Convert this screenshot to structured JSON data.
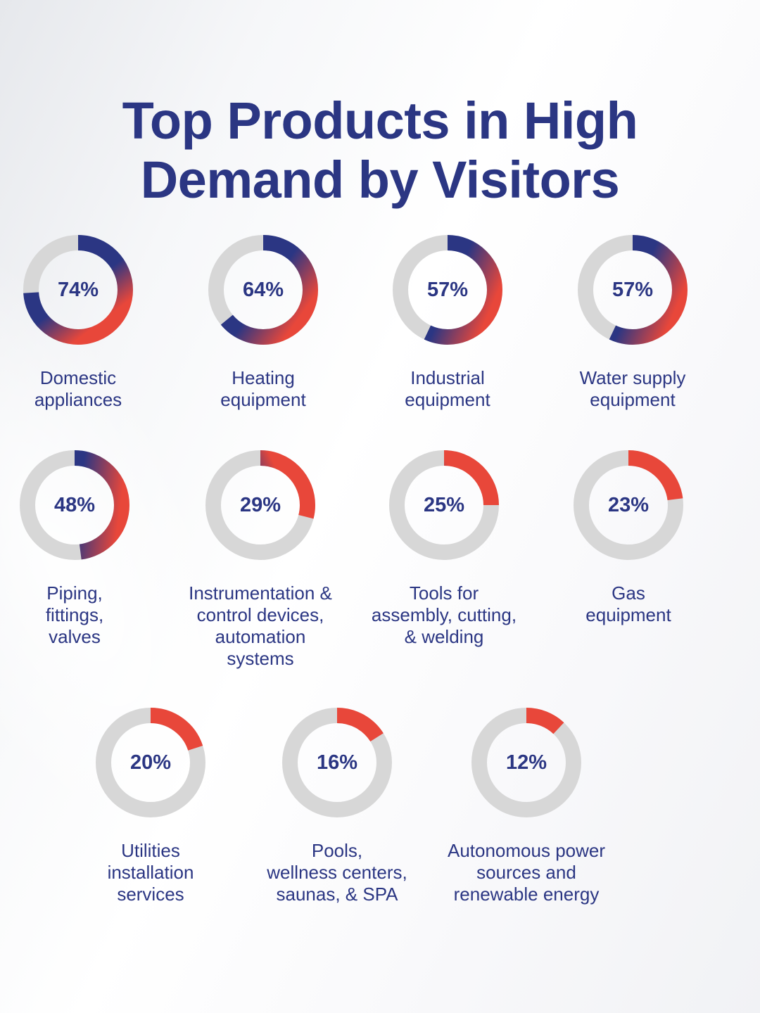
{
  "title_lines": [
    "Top Products in High",
    "Demand by Visitors"
  ],
  "colors": {
    "navy": "#2b3683",
    "red": "#e8473a",
    "track": "#d7d7d7"
  },
  "chart_data": {
    "type": "donut",
    "title": "Top Products in High Demand by Visitors",
    "unit": "%",
    "items": [
      {
        "label": "Domestic\nappliances",
        "value": 74,
        "display": "74%"
      },
      {
        "label": "Heating\nequipment",
        "value": 64,
        "display": "64%"
      },
      {
        "label": "Industrial\nequipment",
        "value": 57,
        "display": "57%"
      },
      {
        "label": "Water supply\nequipment",
        "value": 57,
        "display": "57%"
      },
      {
        "label": "Piping,\nfittings,\nvalves",
        "value": 48,
        "display": "48%"
      },
      {
        "label": "Instrumentation &\ncontrol devices,\nautomation\nsystems",
        "value": 29,
        "display": "29%"
      },
      {
        "label": "Tools for\nassembly, cutting,\n& welding",
        "value": 25,
        "display": "25%"
      },
      {
        "label": "Gas\nequipment",
        "value": 23,
        "display": "23%"
      },
      {
        "label": "Utilities\ninstallation\nservices",
        "value": 20,
        "display": "20%"
      },
      {
        "label": "Pools,\nwellness centers,\nsaunas, & SPA",
        "value": 16,
        "display": "16%"
      },
      {
        "label": "Autonomous power\nsources and\nrenewable energy",
        "value": 12,
        "display": "12%"
      }
    ]
  }
}
